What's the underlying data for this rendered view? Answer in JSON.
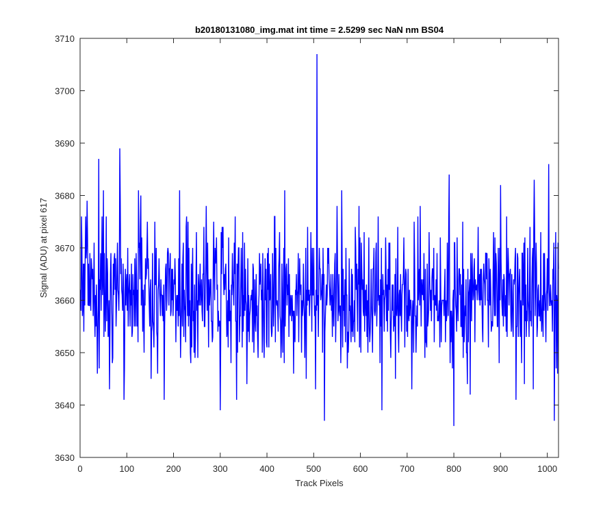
{
  "chart_data": {
    "type": "line",
    "title": "b20180131080_img.mat int time = 2.5299 sec  NaN nm BS04",
    "xlabel": "Track Pixels",
    "ylabel": "Signal (ADU) at pixel 617",
    "xlim": [
      0,
      1024
    ],
    "ylim": [
      3630,
      3710
    ],
    "xticks": [
      0,
      100,
      200,
      300,
      400,
      500,
      600,
      700,
      800,
      900,
      1000
    ],
    "yticks": [
      3630,
      3640,
      3650,
      3660,
      3670,
      3680,
      3690,
      3700,
      3710
    ],
    "grid": false,
    "legend": "none",
    "series": [
      {
        "color": "#0000ff",
        "noise_model": {
          "count": 1024,
          "start_x": 1,
          "mean": 3661,
          "range": [
            3641,
            3689
          ],
          "spikes": [
            {
              "x": 3,
              "y": 3676
            },
            {
              "x": 15,
              "y": 3679
            },
            {
              "x": 37,
              "y": 3646
            },
            {
              "x": 40,
              "y": 3687
            },
            {
              "x": 50,
              "y": 3681
            },
            {
              "x": 85,
              "y": 3689
            },
            {
              "x": 95,
              "y": 3647
            },
            {
              "x": 125,
              "y": 3681
            },
            {
              "x": 130,
              "y": 3680
            },
            {
              "x": 180,
              "y": 3641
            },
            {
              "x": 213,
              "y": 3681
            },
            {
              "x": 300,
              "y": 3639
            },
            {
              "x": 335,
              "y": 3641
            },
            {
              "x": 438,
              "y": 3681
            },
            {
              "x": 504,
              "y": 3643
            },
            {
              "x": 507,
              "y": 3707
            },
            {
              "x": 523,
              "y": 3637
            },
            {
              "x": 560,
              "y": 3681
            },
            {
              "x": 646,
              "y": 3639
            },
            {
              "x": 665,
              "y": 3649
            },
            {
              "x": 710,
              "y": 3643
            },
            {
              "x": 800,
              "y": 3636
            },
            {
              "x": 790,
              "y": 3684
            },
            {
              "x": 835,
              "y": 3642
            },
            {
              "x": 900,
              "y": 3682
            },
            {
              "x": 970,
              "y": 3643
            },
            {
              "x": 972,
              "y": 3683
            },
            {
              "x": 1003,
              "y": 3686
            },
            {
              "x": 1015,
              "y": 3637
            },
            {
              "x": 1018,
              "y": 3673
            }
          ]
        }
      }
    ]
  }
}
